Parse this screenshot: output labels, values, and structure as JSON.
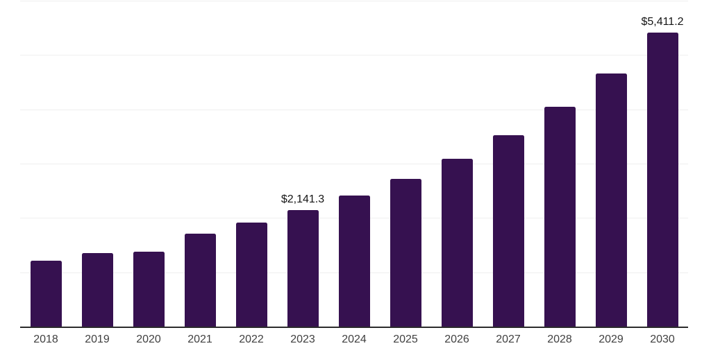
{
  "chart_data": {
    "type": "bar",
    "categories": [
      "2018",
      "2019",
      "2020",
      "2021",
      "2022",
      "2023",
      "2024",
      "2025",
      "2026",
      "2027",
      "2028",
      "2029",
      "2030"
    ],
    "values": [
      1210,
      1350,
      1375,
      1705,
      1920,
      2141.3,
      2410,
      2715,
      3090,
      3525,
      4045,
      4665,
      5411.2
    ],
    "value_labels": {
      "2023": "$2,141.3",
      "2030": "$5,411.2"
    },
    "ylim": [
      0,
      6000
    ],
    "gridline_step": 1000,
    "grid": true,
    "legend": false,
    "colors": {
      "bar": "#361150",
      "gridline": "#efefef",
      "axis": "#2b2b2b",
      "tick_label": "#404040",
      "value_label": "#141414",
      "background": "#ffffff"
    }
  }
}
